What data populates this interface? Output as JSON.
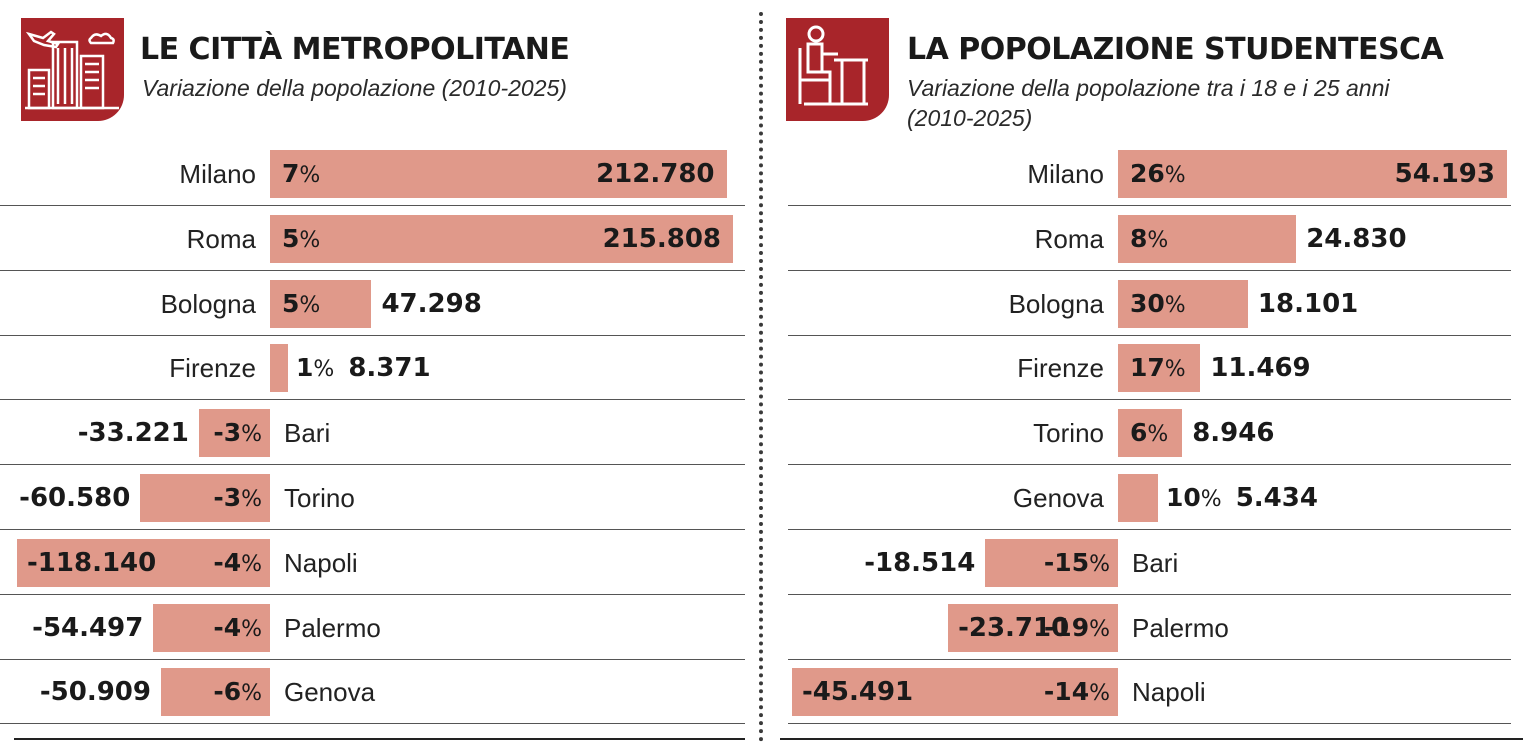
{
  "chart_data": [
    {
      "type": "bar",
      "orientation": "horizontal",
      "title": "LE CITTÀ METROPOLITANE",
      "subtitle": "Variazione della popolazione (2010-2025)",
      "pct_unit": "%",
      "icon": "city-buildings-icon",
      "rows": [
        {
          "city": "Milano",
          "pct": "7",
          "value": "212.780",
          "abs": 212780
        },
        {
          "city": "Roma",
          "pct": "5",
          "value": "215.808",
          "abs": 215808
        },
        {
          "city": "Bologna",
          "pct": "5",
          "value": "47.298",
          "abs": 47298
        },
        {
          "city": "Firenze",
          "pct": "1",
          "value": "8.371",
          "abs": 8371
        },
        {
          "city": "Bari",
          "pct": "-3",
          "value": "-33.221",
          "abs": -33221
        },
        {
          "city": "Torino",
          "pct": "-3",
          "value": "-60.580",
          "abs": -60580
        },
        {
          "city": "Napoli",
          "pct": "-4",
          "value": "-118.140",
          "abs": -118140
        },
        {
          "city": "Palermo",
          "pct": "-4",
          "value": "-54.497",
          "abs": -54497
        },
        {
          "city": "Genova",
          "pct": "-6",
          "value": "-50.909",
          "abs": -50909
        }
      ]
    },
    {
      "type": "bar",
      "orientation": "horizontal",
      "title": "LA POPOLAZIONE STUDENTESCA",
      "subtitle": "Variazione della popolazione tra i 18 e i 25 anni (2010-2025)",
      "pct_unit": "%",
      "icon": "student-at-desk-icon",
      "rows": [
        {
          "city": "Milano",
          "pct": "26",
          "value": "54.193",
          "abs": 54193
        },
        {
          "city": "Roma",
          "pct": "8",
          "value": "24.830",
          "abs": 24830
        },
        {
          "city": "Bologna",
          "pct": "30",
          "value": "18.101",
          "abs": 18101
        },
        {
          "city": "Firenze",
          "pct": "17",
          "value": "11.469",
          "abs": 11469
        },
        {
          "city": "Torino",
          "pct": "6",
          "value": "8.946",
          "abs": 8946
        },
        {
          "city": "Genova",
          "pct": "10",
          "value": "5.434",
          "abs": 5434
        },
        {
          "city": "Bari",
          "pct": "-15",
          "value": "-18.514",
          "abs": -18514
        },
        {
          "city": "Palermo",
          "pct": "-19",
          "value": "-23.710",
          "abs": -23710
        },
        {
          "city": "Napoli",
          "pct": "-14",
          "value": "-45.491",
          "abs": -45491
        }
      ]
    }
  ],
  "colors": {
    "accent": "#a8252a",
    "bar": "#e0998a",
    "text": "#1a1a1a"
  }
}
